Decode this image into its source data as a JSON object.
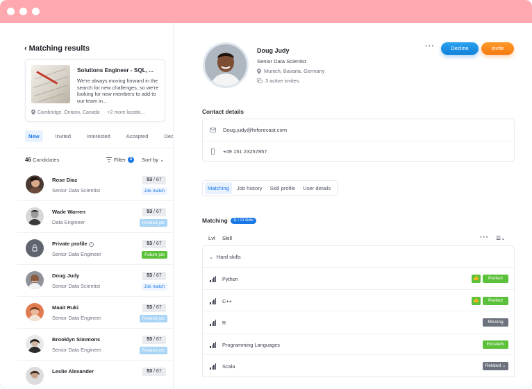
{
  "window": {
    "controls": [
      "close",
      "minimize",
      "maximize"
    ]
  },
  "left": {
    "title": "Matching results",
    "job": {
      "title": "Solutions Engineer - SQL, ...",
      "description": "We're always moving forward in the search for new challenges, so we're looking for new members to add to our team in...",
      "location": "Cambridge, Ontario, Canada",
      "more_locations": "+2 more locatio..."
    },
    "tabs": [
      "New",
      "Invited",
      "Interested",
      "Accepted",
      "Dec"
    ],
    "active_tab": "New",
    "candidates_count": "46",
    "candidates_label": "Candidates",
    "filter_label": "Filter",
    "filter_count": "3",
    "sort_label": "Sort by",
    "candidates": [
      {
        "name": "Rose Diaz",
        "role": "Senior Data Scientist",
        "score": "53",
        "total": "/ 67",
        "status": "Job match",
        "status_kind": "jobmatch"
      },
      {
        "name": "Wade Warren",
        "role": "Data Engineer",
        "score": "53",
        "total": "/ 67",
        "status": "Related job",
        "status_kind": "related"
      },
      {
        "name": "Private profile",
        "role": "Senior Data Engineer",
        "score": "53",
        "total": "/ 67",
        "status": "Future job",
        "status_kind": "future"
      },
      {
        "name": "Doug Judy",
        "role": "Senior Data Scientist",
        "score": "53",
        "total": "/ 67",
        "status": "Job match",
        "status_kind": "jobmatch"
      },
      {
        "name": "Maait Ruki",
        "role": "Senior Data Engineer",
        "score": "53",
        "total": "/ 67",
        "status": "Related job",
        "status_kind": "related"
      },
      {
        "name": "Brooklyn Simmons",
        "role": "Senior Data Engineer",
        "score": "53",
        "total": "/ 67",
        "status": "Related job",
        "status_kind": "related"
      },
      {
        "name": "Leslie Alexander",
        "role": "",
        "score": "53",
        "total": "/ 67",
        "status": "",
        "status_kind": ""
      }
    ]
  },
  "profile": {
    "name": "Doug Judy",
    "title": "Senior Data Scientist",
    "location": "Munich, Bavaria, Germany",
    "invites": "3 active invites",
    "decline_label": "Decline",
    "invite_label": "Invite",
    "more_label": "···"
  },
  "contact": {
    "title": "Contact details",
    "email": "Doug.judy@hrforecast.com",
    "phone": "+49 151 23257857"
  },
  "subtabs": [
    "Matching",
    "Job history",
    "Skill profile",
    "User details"
  ],
  "active_subtab": "Matching",
  "matching": {
    "title": "Matching",
    "badge": "11 / 13 Skills",
    "col_lvl": "Lvl",
    "col_skill": "Skill",
    "group": "Hard skills",
    "skills": [
      {
        "name": "Python",
        "level": "Perfect",
        "kind": "green",
        "thumb": true
      },
      {
        "name": "C++",
        "level": "Perfect",
        "kind": "green",
        "thumb": true
      },
      {
        "name": "R",
        "level": "Missing",
        "kind": "gray",
        "thumb": false
      },
      {
        "name": "Programming Languages",
        "level": "Exceeds",
        "kind": "green",
        "thumb": false
      },
      {
        "name": "Scala",
        "level": "Related ⌄",
        "kind": "gray",
        "thumb": false
      }
    ]
  },
  "colors": {
    "titlebar": "#ffa8b0",
    "accent": "#1877e6",
    "decline": "#1a8fe3",
    "invite": "#f7861b",
    "green": "#5cc13a"
  }
}
